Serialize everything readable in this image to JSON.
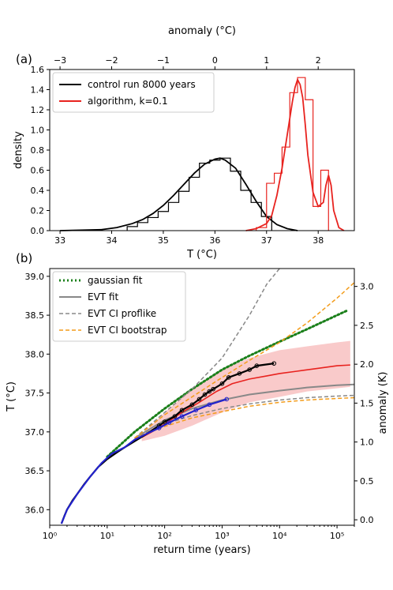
{
  "chart_data": [
    {
      "type": "line",
      "panel_label": "(a)",
      "xlabel": "T (°C)",
      "ylabel": "density",
      "top_xlabel": "anomaly (°C)",
      "xlim": [
        32.8,
        38.7
      ],
      "ylim": [
        0,
        1.6
      ],
      "xticks": [
        "33",
        "34",
        "35",
        "36",
        "37",
        "38"
      ],
      "yticks": [
        "0.0",
        "0.2",
        "0.4",
        "0.6",
        "0.8",
        "1.0",
        "1.2",
        "1.4",
        "1.6"
      ],
      "top_ticks": [
        "−3",
        "−2",
        "−1",
        "0",
        "1",
        "2"
      ],
      "top_tick_values": [
        -3,
        -2,
        -1,
        0,
        1,
        2
      ],
      "anomaly_offset_T": 36.0,
      "legend": {
        "placement": "top-left",
        "entries": [
          "control run 8000 years",
          "algorithm, k=0.1"
        ]
      },
      "series": [
        {
          "name": "control run 8000 years",
          "color": "#000000",
          "kind": "curve",
          "x": [
            33.0,
            33.4,
            33.8,
            34.1,
            34.4,
            34.6,
            34.8,
            35.0,
            35.2,
            35.4,
            35.6,
            35.8,
            36.0,
            36.1,
            36.2,
            36.4,
            36.6,
            36.8,
            37.0,
            37.2,
            37.4,
            37.6
          ],
          "values": [
            0.0,
            0.005,
            0.01,
            0.03,
            0.07,
            0.11,
            0.17,
            0.25,
            0.35,
            0.46,
            0.57,
            0.66,
            0.71,
            0.72,
            0.7,
            0.62,
            0.46,
            0.29,
            0.14,
            0.06,
            0.02,
            0.0
          ]
        },
        {
          "name": "control run 8000 years",
          "color": "#000000",
          "kind": "histogram",
          "edges": [
            34.3,
            34.5,
            34.7,
            34.9,
            35.1,
            35.3,
            35.5,
            35.7,
            35.9,
            36.1,
            36.3,
            36.5,
            36.7,
            36.9,
            37.1
          ],
          "values": [
            0.04,
            0.08,
            0.13,
            0.19,
            0.28,
            0.39,
            0.53,
            0.67,
            0.7,
            0.72,
            0.59,
            0.4,
            0.28,
            0.14
          ]
        },
        {
          "name": "algorithm, k=0.1",
          "color": "#e8231f",
          "kind": "curve",
          "x": [
            36.6,
            36.8,
            37.0,
            37.1,
            37.2,
            37.3,
            37.4,
            37.5,
            37.55,
            37.6,
            37.65,
            37.7,
            37.75,
            37.8,
            37.9,
            38.0,
            38.1,
            38.15,
            38.2,
            38.25,
            38.3,
            38.4,
            38.5
          ],
          "values": [
            0.0,
            0.02,
            0.07,
            0.15,
            0.35,
            0.62,
            0.95,
            1.28,
            1.42,
            1.5,
            1.45,
            1.32,
            1.05,
            0.75,
            0.38,
            0.24,
            0.28,
            0.45,
            0.55,
            0.45,
            0.2,
            0.03,
            0.0
          ]
        },
        {
          "name": "algorithm, k=0.1",
          "color": "#e8231f",
          "kind": "histogram",
          "edges": [
            36.8,
            37.0,
            37.15,
            37.3,
            37.45,
            37.6,
            37.75,
            37.9,
            38.05,
            38.2
          ],
          "values": [
            0.03,
            0.47,
            0.57,
            0.83,
            1.37,
            1.52,
            1.3,
            0.24,
            0.6
          ]
        }
      ]
    },
    {
      "type": "line",
      "panel_label": "(b)",
      "xlabel": "return time (years)",
      "ylabel": "T (°C)",
      "right_ylabel": "anomaly (K)",
      "xscale": "log",
      "xlim": [
        1,
        200000
      ],
      "ylim": [
        35.8,
        39.1
      ],
      "xticks": [
        "10⁰",
        "10¹",
        "10²",
        "10³",
        "10⁴",
        "10⁵"
      ],
      "xtick_values": [
        1,
        10,
        100,
        1000,
        10000,
        100000
      ],
      "yticks": [
        "36.0",
        "36.5",
        "37.0",
        "37.5",
        "38.0",
        "38.5",
        "39.0"
      ],
      "ytick_values": [
        36.0,
        36.5,
        37.0,
        37.5,
        38.0,
        38.5,
        39.0
      ],
      "right_ticks": [
        "0.0",
        "0.5",
        "1.0",
        "1.5",
        "2.0",
        "2.5",
        "3.0"
      ],
      "right_tick_values": [
        0.0,
        0.5,
        1.0,
        1.5,
        2.0,
        2.5,
        3.0
      ],
      "anomaly_offset_T": 35.87,
      "legend": {
        "placement": "top-left",
        "entries": [
          "gaussian fit",
          "EVT fit",
          "EVT CI proflike",
          "EVT CI bootstrap"
        ]
      },
      "series": [
        {
          "name": "gaussian fit",
          "color": "#1a7f1a",
          "style": "dotted",
          "x": [
            10,
            30,
            100,
            300,
            1000,
            3000,
            10000,
            30000,
            100000,
            150000
          ],
          "values": [
            36.68,
            37.0,
            37.3,
            37.55,
            37.8,
            37.98,
            38.16,
            38.32,
            38.5,
            38.56
          ]
        },
        {
          "name": "EVT fit",
          "color": "#888888",
          "style": "solid",
          "x": [
            30,
            100,
            300,
            1000,
            3000,
            10000,
            30000,
            100000,
            200000
          ],
          "values": [
            36.92,
            37.15,
            37.3,
            37.41,
            37.48,
            37.53,
            37.57,
            37.6,
            37.61
          ]
        },
        {
          "name": "EVT CI proflike",
          "color": "#888888",
          "style": "dashed",
          "x": [
            30,
            100,
            300,
            1000,
            3000,
            10000,
            30000,
            100000,
            200000
          ],
          "values": [
            36.92,
            37.1,
            37.21,
            37.3,
            37.36,
            37.41,
            37.44,
            37.46,
            37.47
          ]
        },
        {
          "name": "EVT CI proflike",
          "color": "#888888",
          "style": "dashed",
          "x": [
            30,
            100,
            300,
            1000,
            3000,
            6000,
            10000
          ],
          "values": [
            36.92,
            37.25,
            37.55,
            37.95,
            38.5,
            38.9,
            39.1
          ]
        },
        {
          "name": "EVT CI bootstrap",
          "color": "#f39c1a",
          "style": "dashed",
          "x": [
            30,
            100,
            300,
            1000,
            3000,
            10000,
            30000,
            100000,
            200000
          ],
          "values": [
            36.92,
            37.07,
            37.18,
            37.26,
            37.33,
            37.38,
            37.41,
            37.43,
            37.44
          ]
        },
        {
          "name": "EVT CI bootstrap",
          "color": "#f39c1a",
          "style": "dashed",
          "x": [
            30,
            100,
            300,
            1000,
            3000,
            10000,
            30000,
            100000,
            200000
          ],
          "values": [
            36.92,
            37.22,
            37.45,
            37.7,
            37.92,
            38.15,
            38.4,
            38.72,
            38.92
          ]
        },
        {
          "name": "algorithm",
          "color": "#e8231f",
          "style": "solid",
          "x": [
            40,
            60,
            100,
            200,
            400,
            800,
            1500,
            3000,
            6000,
            10000,
            20000,
            50000,
            100000,
            170000
          ],
          "values": [
            36.93,
            37.0,
            37.1,
            37.25,
            37.38,
            37.52,
            37.62,
            37.68,
            37.72,
            37.75,
            37.78,
            37.82,
            37.85,
            37.86
          ]
        },
        {
          "name": "algorithm band upper",
          "color": "#f7b4b4",
          "style": "band",
          "x": [
            40,
            100,
            300,
            1000,
            3000,
            10000,
            30000,
            100000,
            170000
          ],
          "values": [
            36.97,
            37.25,
            37.55,
            37.8,
            37.95,
            38.05,
            38.1,
            38.15,
            38.17
          ]
        },
        {
          "name": "algorithm band lower",
          "color": "#f7b4b4",
          "style": "band",
          "x": [
            40,
            100,
            300,
            1000,
            3000,
            10000,
            30000,
            100000,
            170000
          ],
          "values": [
            36.88,
            36.95,
            37.08,
            37.25,
            37.38,
            37.45,
            37.52,
            37.56,
            37.58
          ]
        },
        {
          "name": "control empirical",
          "color": "#000000",
          "style": "points-line",
          "x": [
            1.6,
            1.8,
            2,
            2.5,
            3,
            4,
            5,
            7,
            10,
            15,
            20,
            30,
            50,
            80,
            100,
            150,
            200,
            300,
            400,
            500,
            600,
            700,
            1000,
            1300,
            2000,
            3000,
            4000,
            8000
          ],
          "values": [
            35.82,
            35.92,
            36.0,
            36.12,
            36.2,
            36.33,
            36.42,
            36.55,
            36.65,
            36.74,
            36.8,
            36.88,
            36.98,
            37.08,
            37.13,
            37.2,
            37.28,
            37.35,
            37.42,
            37.48,
            37.52,
            37.55,
            37.62,
            37.7,
            37.75,
            37.8,
            37.85,
            37.88
          ]
        },
        {
          "name": "algorithm empirical",
          "color": "#2222cc",
          "style": "points-line",
          "x": [
            1.6,
            2,
            3,
            5,
            8,
            12,
            20,
            30,
            50,
            80,
            120,
            200,
            350,
            600,
            1200
          ],
          "values": [
            35.82,
            36.0,
            36.2,
            36.42,
            36.6,
            36.72,
            36.8,
            36.9,
            36.98,
            37.05,
            37.12,
            37.2,
            37.28,
            37.35,
            37.42
          ]
        }
      ]
    }
  ]
}
